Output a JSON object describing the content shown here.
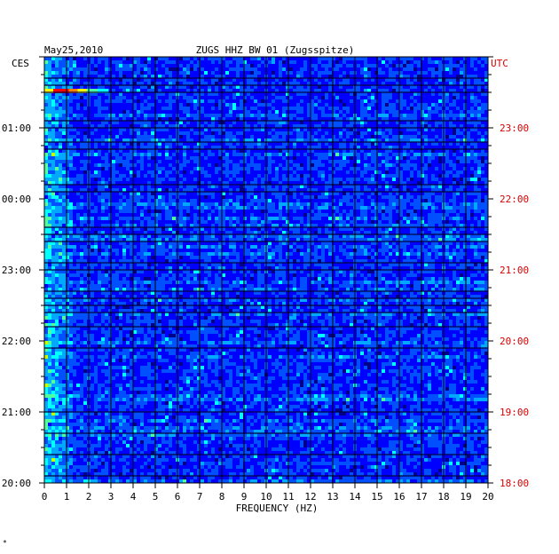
{
  "chart_data": {
    "type": "heatmap",
    "date_label": "May25,2010",
    "title": "ZUGS HHZ BW 01 (Zugsspitze)",
    "left_zone": "CES",
    "right_zone": "UTC",
    "xlabel": "FREQUENCY (HZ)",
    "xlim": [
      0,
      20
    ],
    "x_ticks": [
      "0",
      "1",
      "2",
      "3",
      "4",
      "5",
      "6",
      "7",
      "8",
      "9",
      "10",
      "11",
      "12",
      "13",
      "14",
      "15",
      "16",
      "17",
      "18",
      "19",
      "20"
    ],
    "left_time_ticks": [
      "01:00",
      "00:00",
      "23:00",
      "22:00",
      "21:00",
      "20:00"
    ],
    "right_time_ticks": [
      "23:00",
      "22:00",
      "21:00",
      "20:00",
      "19:00",
      "18:00"
    ],
    "time_range_utc": [
      "18:00",
      "24:00"
    ],
    "colormap": [
      "#00008b",
      "#0000ff",
      "#0050ff",
      "#00a8ff",
      "#00ffff",
      "#50ffa0",
      "#c8ff00",
      "#ffff00",
      "#ff8000",
      "#ff0000"
    ],
    "footnote": "*"
  }
}
